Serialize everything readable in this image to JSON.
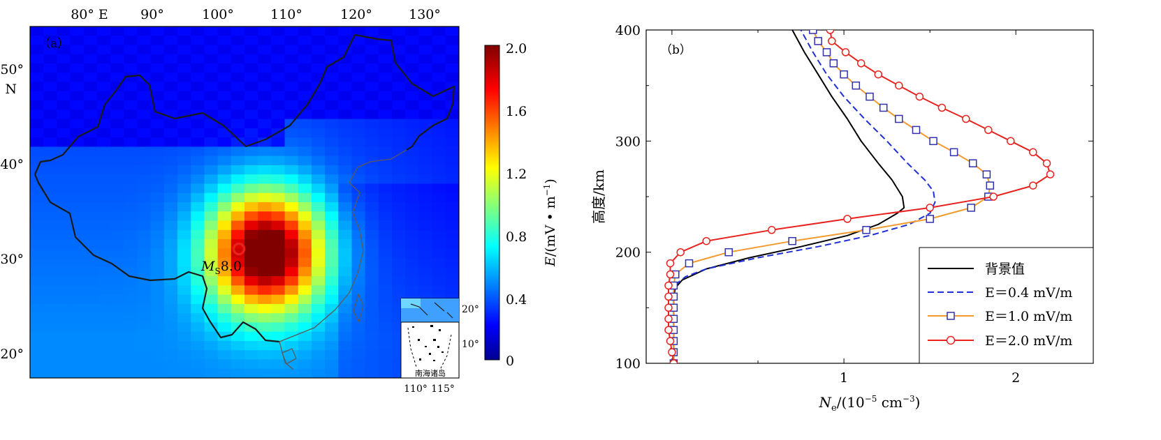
{
  "panel_a": {
    "label": "（a）",
    "lon_ticks": [
      "80° E",
      "90°",
      "100°",
      "110°",
      "120°",
      "130°"
    ],
    "lat_ticks": [
      "50°",
      "40°",
      "30°",
      "20°"
    ],
    "lat_unit": "N",
    "epicenter_prefix": "M",
    "epicenter_sub": "S",
    "epicenter_value": "8.0",
    "inset_lat_ticks": [
      "20°",
      "10°"
    ],
    "inset_lon_ticks": [
      "110°",
      "115°"
    ],
    "inset_label": "南海诸岛",
    "colorbar": {
      "ticks": [
        "2.0",
        "1.6",
        "1.2",
        "0.8",
        "0.4",
        "0"
      ],
      "label_e": "E",
      "label_rest": "/(mV • m",
      "label_sup": "−1",
      "label_close": ")"
    }
  },
  "chart_data": {
    "type": "line",
    "label": "（b）",
    "xlabel_main": "N",
    "xlabel_sub": "e",
    "xlabel_rest": "/(10",
    "xlabel_sup": "−5",
    "xlabel_end": " cm",
    "xlabel_sup2": "−3",
    "xlabel_close": ")",
    "ylabel": "高度/km",
    "xlim": [
      -0.15,
      2.45
    ],
    "ylim": [
      100,
      400
    ],
    "x_ticks": [
      "1",
      "2"
    ],
    "y_ticks": [
      "100",
      "200",
      "300",
      "400"
    ],
    "legend_position": "bottom-right",
    "series": [
      {
        "name": "背景值",
        "color": "#000000",
        "style": "solid",
        "marker": "none",
        "points": [
          [
            0.01,
            100
          ],
          [
            0.01,
            140
          ],
          [
            0.01,
            160
          ],
          [
            0.02,
            168
          ],
          [
            0.06,
            175
          ],
          [
            0.2,
            185
          ],
          [
            0.45,
            195
          ],
          [
            0.75,
            205
          ],
          [
            1.02,
            215
          ],
          [
            1.2,
            225
          ],
          [
            1.31,
            235
          ],
          [
            1.35,
            240
          ],
          [
            1.34,
            250
          ],
          [
            1.28,
            265
          ],
          [
            1.2,
            280
          ],
          [
            1.1,
            300
          ],
          [
            1.02,
            320
          ],
          [
            0.93,
            340
          ],
          [
            0.85,
            360
          ],
          [
            0.77,
            380
          ],
          [
            0.7,
            400
          ]
        ]
      },
      {
        "name": "E＝0.4 mV/m",
        "color": "#1f2fd6",
        "style": "dashed",
        "marker": "none",
        "points": [
          [
            0.01,
            100
          ],
          [
            0.01,
            150
          ],
          [
            0.01,
            165
          ],
          [
            0.03,
            172
          ],
          [
            0.08,
            178
          ],
          [
            0.2,
            185
          ],
          [
            0.5,
            195
          ],
          [
            0.85,
            205
          ],
          [
            1.15,
            215
          ],
          [
            1.38,
            225
          ],
          [
            1.5,
            235
          ],
          [
            1.53,
            245
          ],
          [
            1.52,
            255
          ],
          [
            1.47,
            265
          ],
          [
            1.37,
            280
          ],
          [
            1.25,
            300
          ],
          [
            1.12,
            320
          ],
          [
            1.0,
            340
          ],
          [
            0.9,
            360
          ],
          [
            0.82,
            380
          ],
          [
            0.75,
            400
          ]
        ]
      },
      {
        "name": "E＝1.0 mV/m",
        "color": "#f29a2e",
        "style": "solid",
        "marker": "square",
        "points": [
          [
            0.01,
            100
          ],
          [
            0.01,
            110
          ],
          [
            0.01,
            120
          ],
          [
            0.01,
            130
          ],
          [
            0.01,
            140
          ],
          [
            0.01,
            150
          ],
          [
            0.01,
            160
          ],
          [
            0.01,
            170
          ],
          [
            0.02,
            180
          ],
          [
            0.1,
            190
          ],
          [
            0.33,
            200
          ],
          [
            0.7,
            210
          ],
          [
            1.13,
            220
          ],
          [
            1.5,
            230
          ],
          [
            1.74,
            240
          ],
          [
            1.84,
            250
          ],
          [
            1.85,
            260
          ],
          [
            1.83,
            270
          ],
          [
            1.75,
            280
          ],
          [
            1.64,
            290
          ],
          [
            1.52,
            300
          ],
          [
            1.42,
            310
          ],
          [
            1.32,
            320
          ],
          [
            1.23,
            330
          ],
          [
            1.15,
            340
          ],
          [
            1.07,
            350
          ],
          [
            1.0,
            360
          ],
          [
            0.94,
            370
          ],
          [
            0.9,
            380
          ],
          [
            0.85,
            390
          ],
          [
            0.82,
            400
          ]
        ]
      },
      {
        "name": "E＝2.0 mV/m",
        "color": "#e8221f",
        "style": "solid",
        "marker": "circle",
        "points": [
          [
            0.01,
            100
          ],
          [
            0.0,
            110
          ],
          [
            -0.01,
            120
          ],
          [
            -0.02,
            130
          ],
          [
            -0.02,
            140
          ],
          [
            -0.02,
            150
          ],
          [
            -0.02,
            160
          ],
          [
            -0.02,
            170
          ],
          [
            -0.01,
            180
          ],
          [
            -0.01,
            190
          ],
          [
            0.05,
            200
          ],
          [
            0.2,
            210
          ],
          [
            0.58,
            220
          ],
          [
            1.02,
            230
          ],
          [
            1.5,
            240
          ],
          [
            1.87,
            250
          ],
          [
            2.1,
            260
          ],
          [
            2.2,
            270
          ],
          [
            2.18,
            280
          ],
          [
            2.1,
            290
          ],
          [
            1.97,
            300
          ],
          [
            1.84,
            310
          ],
          [
            1.71,
            320
          ],
          [
            1.57,
            330
          ],
          [
            1.44,
            340
          ],
          [
            1.32,
            350
          ],
          [
            1.2,
            360
          ],
          [
            1.1,
            370
          ],
          [
            1.01,
            380
          ],
          [
            0.93,
            390
          ],
          [
            0.92,
            400
          ]
        ]
      }
    ]
  },
  "heatmap": {
    "cols": 32,
    "rows": 38,
    "peak_col": 17.6,
    "peak_row": 24.4,
    "north_row": 13,
    "ne_row": 7
  }
}
